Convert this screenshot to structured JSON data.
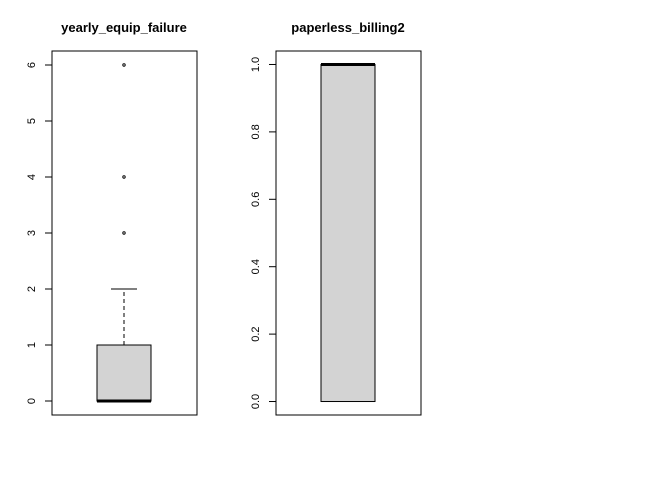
{
  "chart_data": [
    {
      "type": "boxplot",
      "title": "yearly_equip_failure",
      "ylim": [
        -0.25,
        6.25
      ],
      "yticks": [
        0,
        1,
        2,
        3,
        4,
        5,
        6
      ],
      "tick_labels": [
        "0",
        "1",
        "2",
        "3",
        "4",
        "5",
        "6"
      ],
      "box": {
        "min": 0,
        "q1": 0,
        "median": 0,
        "q3": 1,
        "max": 2
      },
      "outliers": [
        3,
        4,
        6
      ],
      "fill_color": "#d3d3d3"
    },
    {
      "type": "boxplot",
      "title": "paperless_billing2",
      "ylim": [
        -0.04,
        1.04
      ],
      "yticks": [
        0.0,
        0.2,
        0.4,
        0.6,
        0.8,
        1.0
      ],
      "tick_labels": [
        "0.0",
        "0.2",
        "0.4",
        "0.6",
        "0.8",
        "1.0"
      ],
      "box": {
        "min": 0,
        "q1": 0,
        "median": 1,
        "q3": 1,
        "max": 1
      },
      "outliers": [],
      "fill_color": "#d3d3d3"
    }
  ]
}
